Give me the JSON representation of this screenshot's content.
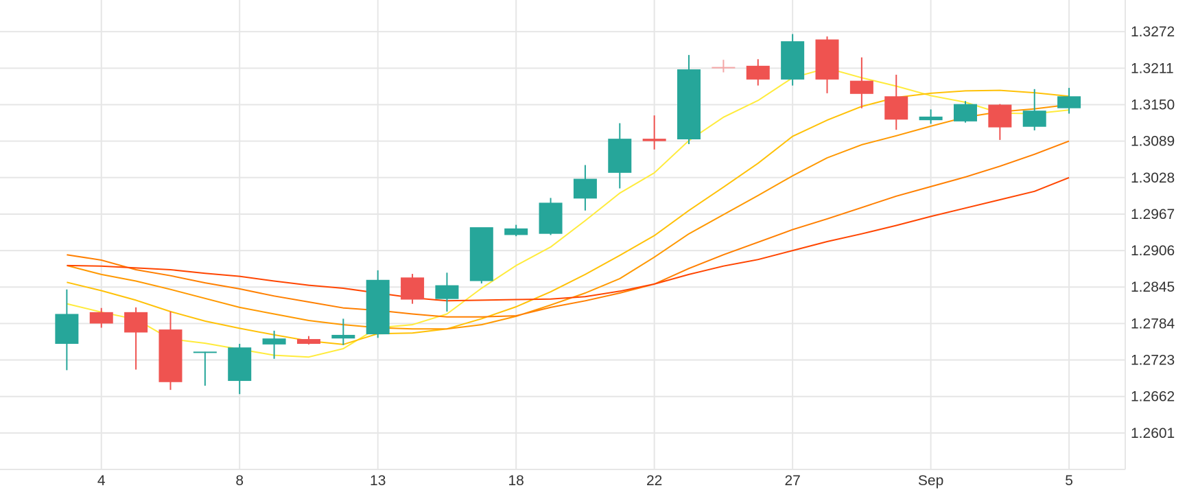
{
  "chart_data": {
    "type": "candlestick",
    "x_ticks": [
      {
        "label": "4",
        "at": 2
      },
      {
        "label": "8",
        "at": 6
      },
      {
        "label": "13",
        "at": 10
      },
      {
        "label": "18",
        "at": 14
      },
      {
        "label": "22",
        "at": 18
      },
      {
        "label": "27",
        "at": 22
      },
      {
        "label": "Sep",
        "at": 26
      },
      {
        "label": "5",
        "at": 30
      }
    ],
    "y_ticks": [
      "1.2601",
      "1.2662",
      "1.2723",
      "1.2784",
      "1.2845",
      "1.2906",
      "1.2967",
      "1.3028",
      "1.3089",
      "1.3150",
      "1.3211",
      "1.3272"
    ],
    "ylim": [
      1.254,
      1.3325
    ],
    "grid": true,
    "colors": {
      "up": "#26a69a",
      "down": "#ef5350",
      "doji": "#f4a6a6",
      "grid": "#e6e6e6",
      "text": "#333333"
    },
    "candles": [
      {
        "x": 1,
        "open": 1.275,
        "high": 1.2841,
        "low": 1.2706,
        "close": 1.28
      },
      {
        "x": 2,
        "open": 1.2803,
        "high": 1.281,
        "low": 1.2777,
        "close": 1.2784
      },
      {
        "x": 3,
        "open": 1.2803,
        "high": 1.2811,
        "low": 1.2707,
        "close": 1.2769
      },
      {
        "x": 4,
        "open": 1.2774,
        "high": 1.2804,
        "low": 1.2673,
        "close": 1.2686
      },
      {
        "x": 5,
        "open": 1.2737,
        "high": 1.2737,
        "low": 1.268,
        "close": 1.2737
      },
      {
        "x": 6,
        "open": 1.2688,
        "high": 1.275,
        "low": 1.2666,
        "close": 1.2744
      },
      {
        "x": 7,
        "open": 1.2749,
        "high": 1.2772,
        "low": 1.2725,
        "close": 1.2759
      },
      {
        "x": 8,
        "open": 1.2758,
        "high": 1.2763,
        "low": 1.2749,
        "close": 1.275
      },
      {
        "x": 9,
        "open": 1.2759,
        "high": 1.2792,
        "low": 1.2748,
        "close": 1.2765
      },
      {
        "x": 10,
        "open": 1.2766,
        "high": 1.2873,
        "low": 1.276,
        "close": 1.2857
      },
      {
        "x": 11,
        "open": 1.2861,
        "high": 1.2867,
        "low": 1.2817,
        "close": 1.2824
      },
      {
        "x": 12,
        "open": 1.2825,
        "high": 1.2869,
        "low": 1.2804,
        "close": 1.2848
      },
      {
        "x": 13,
        "open": 1.2855,
        "high": 1.2943,
        "low": 1.2851,
        "close": 1.2945
      },
      {
        "x": 14,
        "open": 1.2932,
        "high": 1.2949,
        "low": 1.293,
        "close": 1.2943
      },
      {
        "x": 15,
        "open": 1.2934,
        "high": 1.2994,
        "low": 1.2932,
        "close": 1.2986
      },
      {
        "x": 16,
        "open": 1.2993,
        "high": 1.3049,
        "low": 1.2973,
        "close": 1.3026
      },
      {
        "x": 17,
        "open": 1.3036,
        "high": 1.3119,
        "low": 1.301,
        "close": 1.3093
      },
      {
        "x": 18,
        "open": 1.3093,
        "high": 1.3132,
        "low": 1.3075,
        "close": 1.3089
      },
      {
        "x": 19,
        "open": 1.3092,
        "high": 1.3233,
        "low": 1.3084,
        "close": 1.3209
      },
      {
        "x": 20,
        "open": 1.3213,
        "high": 1.3225,
        "low": 1.3204,
        "close": 1.3211
      },
      {
        "x": 21,
        "open": 1.3215,
        "high": 1.3226,
        "low": 1.3182,
        "close": 1.3192
      },
      {
        "x": 22,
        "open": 1.3192,
        "high": 1.3268,
        "low": 1.3182,
        "close": 1.3256
      },
      {
        "x": 23,
        "open": 1.3259,
        "high": 1.3264,
        "low": 1.3169,
        "close": 1.3192
      },
      {
        "x": 24,
        "open": 1.319,
        "high": 1.3229,
        "low": 1.3144,
        "close": 1.3168
      },
      {
        "x": 25,
        "open": 1.3164,
        "high": 1.32,
        "low": 1.3108,
        "close": 1.3125
      },
      {
        "x": 26,
        "open": 1.3124,
        "high": 1.3142,
        "low": 1.3118,
        "close": 1.313
      },
      {
        "x": 27,
        "open": 1.3122,
        "high": 1.3156,
        "low": 1.312,
        "close": 1.3151
      },
      {
        "x": 28,
        "open": 1.315,
        "high": 1.3151,
        "low": 1.3091,
        "close": 1.3112
      },
      {
        "x": 29,
        "open": 1.3113,
        "high": 1.3176,
        "low": 1.3107,
        "close": 1.314
      },
      {
        "x": 30,
        "open": 1.3144,
        "high": 1.3178,
        "low": 1.3135,
        "close": 1.3164
      }
    ],
    "series": [
      {
        "color": "#ffeb3b",
        "values": [
          [
            1,
            1.2817
          ],
          [
            2,
            1.2803
          ],
          [
            3,
            1.2791
          ],
          [
            4,
            1.2758
          ],
          [
            5,
            1.2751
          ],
          [
            6,
            1.2741
          ],
          [
            7,
            1.2731
          ],
          [
            8,
            1.2728
          ],
          [
            9,
            1.2742
          ],
          [
            10,
            1.2777
          ],
          [
            11,
            1.2782
          ],
          [
            12,
            1.28
          ],
          [
            13,
            1.2843
          ],
          [
            14,
            1.2881
          ],
          [
            15,
            1.2912
          ],
          [
            16,
            1.2956
          ],
          [
            17,
            1.3002
          ],
          [
            18,
            1.3036
          ],
          [
            19,
            1.309
          ],
          [
            20,
            1.3129
          ],
          [
            21,
            1.3157
          ],
          [
            22,
            1.3195
          ],
          [
            23,
            1.3211
          ],
          [
            24,
            1.3195
          ],
          [
            25,
            1.3181
          ],
          [
            26,
            1.3165
          ],
          [
            27,
            1.3154
          ],
          [
            28,
            1.3136
          ],
          [
            29,
            1.3135
          ],
          [
            30,
            1.3141
          ]
        ]
      },
      {
        "color": "#ffc107",
        "values": [
          [
            1,
            1.2853
          ],
          [
            2,
            1.2839
          ],
          [
            3,
            1.2823
          ],
          [
            4,
            1.2804
          ],
          [
            5,
            1.2788
          ],
          [
            6,
            1.2776
          ],
          [
            7,
            1.2765
          ],
          [
            8,
            1.2755
          ],
          [
            9,
            1.2749
          ],
          [
            10,
            1.2767
          ],
          [
            11,
            1.2768
          ],
          [
            12,
            1.2775
          ],
          [
            13,
            1.2792
          ],
          [
            14,
            1.2812
          ],
          [
            15,
            1.2837
          ],
          [
            16,
            1.2866
          ],
          [
            17,
            1.2898
          ],
          [
            18,
            1.2931
          ],
          [
            19,
            1.2973
          ],
          [
            20,
            1.3012
          ],
          [
            21,
            1.3052
          ],
          [
            22,
            1.3097
          ],
          [
            23,
            1.3124
          ],
          [
            24,
            1.3147
          ],
          [
            25,
            1.3162
          ],
          [
            26,
            1.3169
          ],
          [
            27,
            1.3173
          ],
          [
            28,
            1.3174
          ],
          [
            29,
            1.317
          ],
          [
            30,
            1.3164
          ]
        ]
      },
      {
        "color": "#ff9800",
        "values": [
          [
            1,
            1.2881
          ],
          [
            2,
            1.2866
          ],
          [
            3,
            1.2855
          ],
          [
            4,
            1.2841
          ],
          [
            5,
            1.2826
          ],
          [
            6,
            1.2811
          ],
          [
            7,
            1.28
          ],
          [
            8,
            1.2789
          ],
          [
            9,
            1.2782
          ],
          [
            10,
            1.2777
          ],
          [
            11,
            1.2775
          ],
          [
            12,
            1.2775
          ],
          [
            13,
            1.2782
          ],
          [
            14,
            1.2796
          ],
          [
            15,
            1.2815
          ],
          [
            16,
            1.2835
          ],
          [
            17,
            1.2859
          ],
          [
            18,
            1.2895
          ],
          [
            19,
            1.2934
          ],
          [
            20,
            1.2966
          ],
          [
            21,
            1.2998
          ],
          [
            22,
            1.3031
          ],
          [
            23,
            1.3061
          ],
          [
            24,
            1.3083
          ],
          [
            25,
            1.3098
          ],
          [
            26,
            1.3114
          ],
          [
            27,
            1.3129
          ],
          [
            28,
            1.3138
          ],
          [
            29,
            1.3143
          ],
          [
            30,
            1.315
          ]
        ]
      },
      {
        "color": "#ff7f00",
        "values": [
          [
            1,
            1.2899
          ],
          [
            2,
            1.289
          ],
          [
            3,
            1.2874
          ],
          [
            4,
            1.2864
          ],
          [
            5,
            1.2852
          ],
          [
            6,
            1.2842
          ],
          [
            7,
            1.283
          ],
          [
            8,
            1.282
          ],
          [
            9,
            1.281
          ],
          [
            10,
            1.2806
          ],
          [
            11,
            1.28
          ],
          [
            12,
            1.2795
          ],
          [
            13,
            1.2795
          ],
          [
            14,
            1.2797
          ],
          [
            15,
            1.2811
          ],
          [
            16,
            1.2822
          ],
          [
            17,
            1.2835
          ],
          [
            18,
            1.285
          ],
          [
            19,
            1.2876
          ],
          [
            20,
            1.2899
          ],
          [
            21,
            1.292
          ],
          [
            22,
            1.2941
          ],
          [
            23,
            1.2959
          ],
          [
            24,
            1.2978
          ],
          [
            25,
            1.2997
          ],
          [
            26,
            1.3013
          ],
          [
            27,
            1.3029
          ],
          [
            28,
            1.3047
          ],
          [
            29,
            1.3067
          ],
          [
            30,
            1.3089
          ]
        ]
      },
      {
        "color": "#ff4500",
        "values": [
          [
            1,
            1.2881
          ],
          [
            2,
            1.288
          ],
          [
            3,
            1.2877
          ],
          [
            4,
            1.2874
          ],
          [
            5,
            1.2868
          ],
          [
            6,
            1.2863
          ],
          [
            7,
            1.2855
          ],
          [
            8,
            1.2848
          ],
          [
            9,
            1.2843
          ],
          [
            10,
            1.2835
          ],
          [
            11,
            1.2827
          ],
          [
            12,
            1.2822
          ],
          [
            13,
            1.2823
          ],
          [
            14,
            1.2824
          ],
          [
            15,
            1.2825
          ],
          [
            16,
            1.2829
          ],
          [
            17,
            1.2838
          ],
          [
            18,
            1.285
          ],
          [
            19,
            1.2866
          ],
          [
            20,
            1.288
          ],
          [
            21,
            1.2891
          ],
          [
            22,
            1.2906
          ],
          [
            23,
            1.2921
          ],
          [
            24,
            1.2934
          ],
          [
            25,
            1.2948
          ],
          [
            26,
            1.2963
          ],
          [
            27,
            1.2977
          ],
          [
            28,
            1.2991
          ],
          [
            29,
            1.3005
          ],
          [
            30,
            1.3028
          ]
        ]
      }
    ]
  }
}
